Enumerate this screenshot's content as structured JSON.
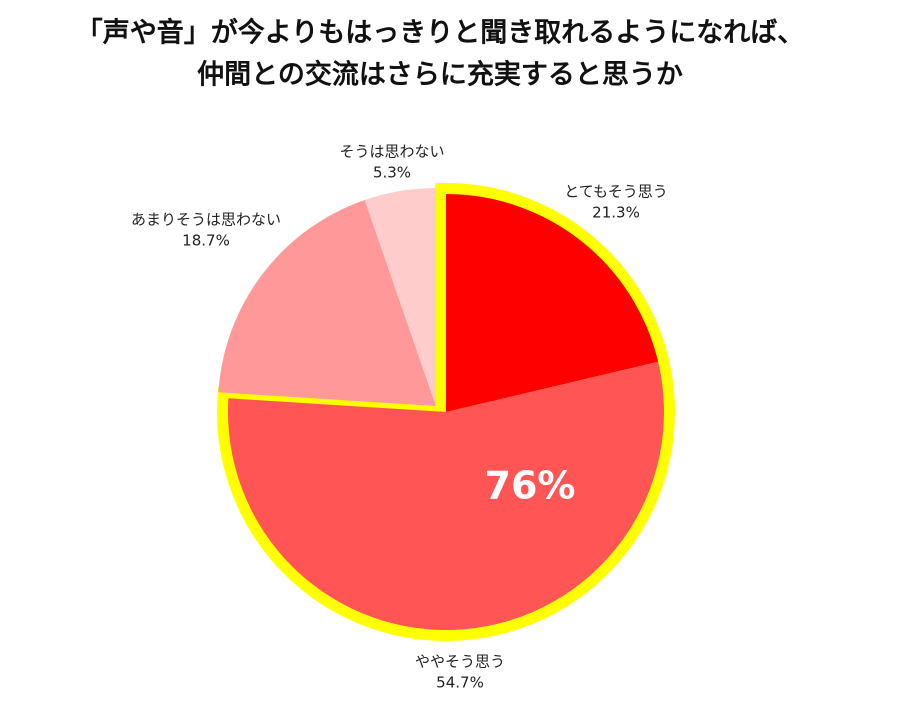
{
  "chart_data": {
    "type": "pie",
    "title": [
      "「声や音」が今よりもはっきりと聞き取れるようになれば、",
      "仲間との交流はさらに充実すると思うか"
    ],
    "categories": [
      "とてもそう思う",
      "ややそう思う",
      "あまりそうは思わない",
      "そうは思わない"
    ],
    "values": [
      21.3,
      54.7,
      18.7,
      5.3
    ],
    "value_labels": [
      "21.3%",
      "54.7%",
      "18.7%",
      "5.3%"
    ],
    "colors": [
      "#ff0000",
      "#ff5555",
      "#ff9999",
      "#ffcccc"
    ],
    "annotation": "76%",
    "highlight_color": "#ffff00"
  }
}
